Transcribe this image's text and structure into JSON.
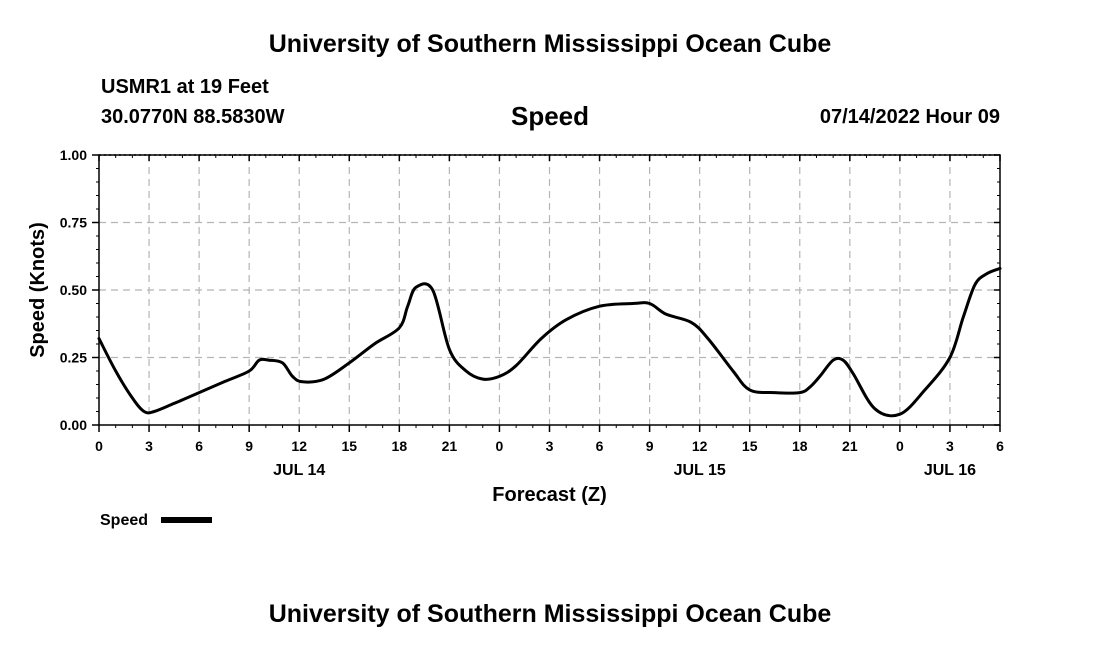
{
  "header": {
    "title": "University of Southern Mississippi Ocean Cube",
    "station": "USMR1 at 19 Feet",
    "coords": "30.0770N  88.5830W",
    "chart_title": "Speed",
    "datetime": "07/14/2022 Hour 09"
  },
  "footer": {
    "title": "University of Southern Mississippi Ocean Cube"
  },
  "chart_data": {
    "type": "line",
    "title": "Speed",
    "xlabel": "Forecast (Z)",
    "ylabel": "Speed (Knots)",
    "xlim": [
      0,
      54
    ],
    "ylim": [
      0,
      1
    ],
    "y_ticks": [
      0,
      0.25,
      0.5,
      0.75,
      1
    ],
    "y_tick_labels": [
      "0.00",
      "0.25",
      "0.50",
      "0.75",
      "1.00"
    ],
    "x_ticks": [
      0,
      3,
      6,
      9,
      12,
      15,
      18,
      21,
      24,
      27,
      30,
      33,
      36,
      39,
      42,
      45,
      48,
      51,
      54
    ],
    "x_tick_labels": [
      "0",
      "3",
      "6",
      "9",
      "12",
      "15",
      "18",
      "21",
      "0",
      "3",
      "6",
      "9",
      "12",
      "15",
      "18",
      "21",
      "0",
      "3",
      "6"
    ],
    "date_labels": [
      {
        "hour": 12,
        "label": "JUL 14"
      },
      {
        "hour": 36,
        "label": "JUL 15"
      },
      {
        "hour": 51,
        "label": "JUL 16"
      }
    ],
    "grid": true,
    "legend": [
      {
        "name": "Speed",
        "color": "#000000"
      }
    ],
    "series": [
      {
        "name": "Speed",
        "x": [
          0,
          1,
          2,
          2.7,
          3.3,
          4.5,
          6,
          7.5,
          9,
          9.6,
          10.2,
          11,
          11.6,
          12.2,
          13.5,
          15,
          16.5,
          18,
          18.5,
          19,
          20,
          21,
          22,
          23,
          24,
          25,
          26.5,
          28,
          30,
          32,
          33,
          34,
          35.5,
          36.5,
          38,
          39,
          40.5,
          42,
          42.6,
          43.2,
          44,
          44.6,
          45.2,
          46.5,
          48,
          49.5,
          51,
          51.8,
          52.5,
          53.2,
          54
        ],
        "values": [
          0.32,
          0.2,
          0.1,
          0.05,
          0.05,
          0.08,
          0.12,
          0.16,
          0.2,
          0.24,
          0.24,
          0.23,
          0.18,
          0.16,
          0.17,
          0.23,
          0.3,
          0.36,
          0.44,
          0.51,
          0.5,
          0.28,
          0.2,
          0.17,
          0.18,
          0.22,
          0.32,
          0.39,
          0.44,
          0.45,
          0.45,
          0.41,
          0.38,
          0.32,
          0.2,
          0.13,
          0.12,
          0.12,
          0.14,
          0.18,
          0.24,
          0.24,
          0.19,
          0.06,
          0.04,
          0.13,
          0.25,
          0.4,
          0.52,
          0.56,
          0.58
        ]
      }
    ]
  }
}
